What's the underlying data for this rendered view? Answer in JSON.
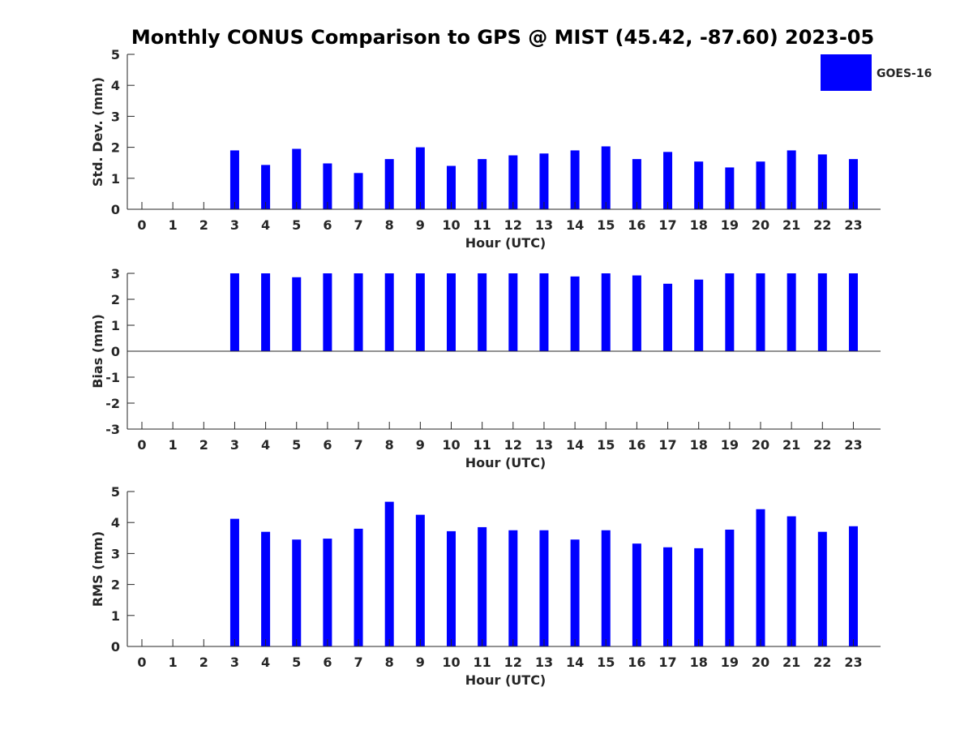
{
  "title": "Monthly CONUS Comparison to GPS @ MIST (45.42, -87.60) 2023-05",
  "legend": {
    "label": "GOES-16",
    "color": "#0000ff"
  },
  "chart_data": [
    {
      "type": "bar",
      "title": "Monthly CONUS Comparison to GPS @ MIST (45.42, -87.60) 2023-05",
      "xlabel": "Hour (UTC)",
      "ylabel": "Std. Dev. (mm)",
      "categories": [
        "0",
        "1",
        "2",
        "3",
        "4",
        "5",
        "6",
        "7",
        "8",
        "9",
        "10",
        "11",
        "12",
        "13",
        "14",
        "15",
        "16",
        "17",
        "18",
        "19",
        "20",
        "21",
        "22",
        "23"
      ],
      "series": [
        {
          "name": "GOES-16",
          "values": [
            null,
            null,
            null,
            1.9,
            1.43,
            1.95,
            1.48,
            1.17,
            1.62,
            2.0,
            1.4,
            1.62,
            1.74,
            1.8,
            1.9,
            2.03,
            1.62,
            1.85,
            1.54,
            1.35,
            1.54,
            1.9,
            1.77,
            1.62
          ]
        }
      ],
      "ylim": [
        0,
        5
      ],
      "yticks": [
        0,
        1,
        2,
        3,
        4,
        5
      ],
      "legend": "top-right",
      "grid": false
    },
    {
      "type": "bar",
      "xlabel": "Hour (UTC)",
      "ylabel": "Bias (mm)",
      "categories": [
        "0",
        "1",
        "2",
        "3",
        "4",
        "5",
        "6",
        "7",
        "8",
        "9",
        "10",
        "11",
        "12",
        "13",
        "14",
        "15",
        "16",
        "17",
        "18",
        "19",
        "20",
        "21",
        "22",
        "23"
      ],
      "series": [
        {
          "name": "GOES-16",
          "values": [
            null,
            null,
            null,
            3.0,
            3.0,
            2.85,
            3.0,
            3.0,
            3.0,
            3.0,
            3.0,
            3.0,
            3.0,
            3.0,
            2.88,
            3.0,
            2.92,
            2.6,
            2.76,
            3.0,
            3.0,
            3.0,
            3.0,
            3.0
          ]
        }
      ],
      "ylim": [
        -3,
        3
      ],
      "yticks": [
        -3,
        -2,
        -1,
        0,
        1,
        2,
        3
      ],
      "grid": false
    },
    {
      "type": "bar",
      "xlabel": "Hour (UTC)",
      "ylabel": "RMS (mm)",
      "categories": [
        "0",
        "1",
        "2",
        "3",
        "4",
        "5",
        "6",
        "7",
        "8",
        "9",
        "10",
        "11",
        "12",
        "13",
        "14",
        "15",
        "16",
        "17",
        "18",
        "19",
        "20",
        "21",
        "22",
        "23"
      ],
      "series": [
        {
          "name": "GOES-16",
          "values": [
            null,
            null,
            null,
            4.12,
            3.7,
            3.45,
            3.48,
            3.8,
            4.67,
            4.25,
            3.72,
            3.85,
            3.75,
            3.75,
            3.45,
            3.75,
            3.32,
            3.2,
            3.17,
            3.77,
            4.43,
            4.2,
            3.7,
            3.88
          ]
        }
      ],
      "ylim": [
        0,
        5
      ],
      "yticks": [
        0,
        1,
        2,
        3,
        4,
        5
      ],
      "grid": false
    }
  ]
}
